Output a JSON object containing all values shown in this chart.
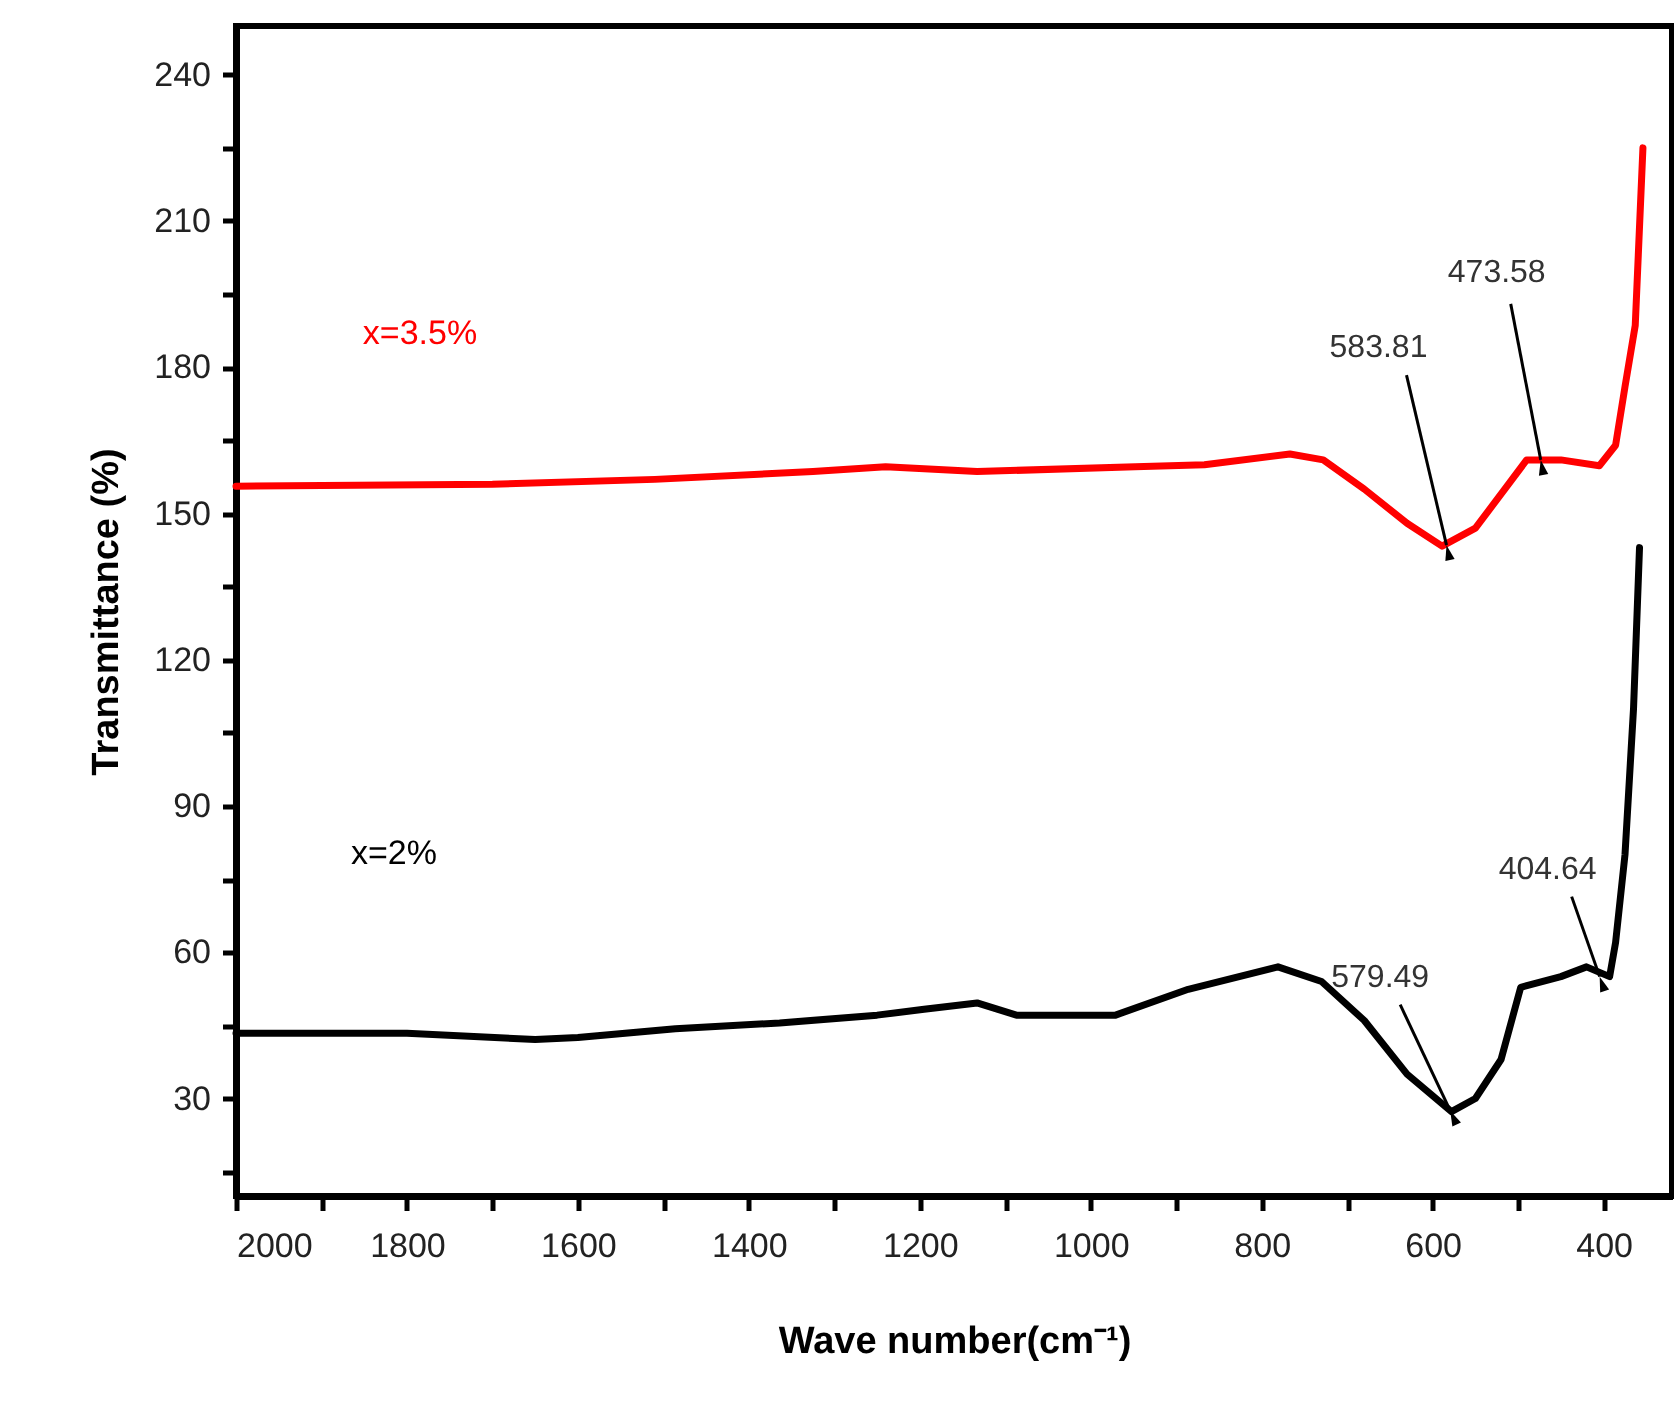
{
  "chart_data": {
    "type": "line",
    "xlabel": "Wave number(cm⁻¹)",
    "ylabel": "Transmittance (%)",
    "xlim": [
      2000,
      320
    ],
    "ylim": [
      10,
      250
    ],
    "xticks": [
      2000,
      {
        "value": 1900,
        "label": null
      },
      1800,
      {
        "value": 1700,
        "label": null
      },
      1600,
      {
        "value": 1500,
        "label": null
      },
      1400,
      {
        "value": 1300,
        "label": null
      },
      1200,
      {
        "value": 1100,
        "label": null
      },
      1000,
      {
        "value": 900,
        "label": null
      },
      800,
      {
        "value": 700,
        "label": null
      },
      600,
      {
        "value": 500,
        "label": null
      },
      400
    ],
    "yticks": [
      {
        "value": 15,
        "label": null
      },
      30,
      {
        "value": 45,
        "label": null
      },
      60,
      {
        "value": 75,
        "label": null
      },
      90,
      {
        "value": 105,
        "label": null
      },
      120,
      {
        "value": 135,
        "label": null
      },
      150,
      {
        "value": 165,
        "label": null
      },
      180,
      {
        "value": 195,
        "label": null
      },
      210,
      {
        "value": 225,
        "label": null
      },
      240
    ],
    "legend": false,
    "grid": false,
    "marker": "none",
    "line_style": "solid",
    "series": [
      {
        "name": "x=3.5%",
        "color": "#ff0000",
        "x": [
          2000,
          1700,
          1510,
          1325,
          1240,
          1133,
          948,
          867,
          767,
          728,
          680,
          630,
          589,
          550,
          513,
          490,
          450,
          405,
          386,
          375,
          363,
          354
        ],
        "values": [
          155.6,
          156,
          157,
          158.6,
          159.6,
          158.6,
          159.6,
          160,
          162.2,
          161,
          155,
          148,
          143.3,
          147,
          155.6,
          161,
          161,
          159.8,
          164,
          176,
          188.6,
          225
        ]
      },
      {
        "name": "x=2%",
        "color": "#000000",
        "x": [
          2000,
          1800,
          1650,
          1600,
          1486,
          1364,
          1250,
          1195,
          1133,
          1087,
          971,
          886,
          781,
          730,
          680,
          630,
          578,
          550,
          520,
          497,
          450,
          420,
          393,
          386,
          375,
          365,
          358
        ],
        "values": [
          43.4,
          43.4,
          42.1,
          42.5,
          44.3,
          45.5,
          47.1,
          48.3,
          49.6,
          47.1,
          47.1,
          52.4,
          57,
          54,
          46,
          35,
          27.3,
          30,
          38,
          52.8,
          55,
          57,
          55,
          62,
          80,
          110,
          143
        ]
      }
    ],
    "annotations": [
      {
        "text": "583.81",
        "x": 583.81,
        "y": 143.5
      },
      {
        "text": "473.58",
        "x": 473.58,
        "y": 161
      },
      {
        "text": "579.49",
        "x": 579.49,
        "y": 27.5
      },
      {
        "text": "404.64",
        "x": 404.64,
        "y": 55
      }
    ]
  }
}
